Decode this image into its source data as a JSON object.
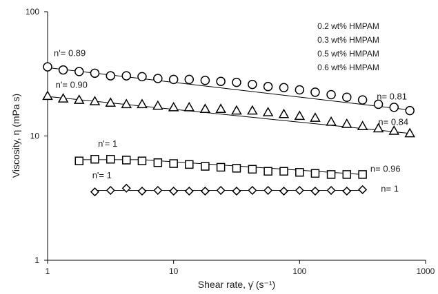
{
  "chart_data": {
    "type": "scatter",
    "x_scale": "log",
    "y_scale": "log",
    "xlim": [
      1,
      1000
    ],
    "ylim": [
      1,
      100
    ],
    "grid": false,
    "xlabel": "Shear rate, γ̇ (s⁻¹)",
    "ylabel": "Viscosity, η (mPa s)",
    "x_ticks": [
      {
        "v": 1,
        "label": "1"
      },
      {
        "v": 10,
        "label": "10"
      },
      {
        "v": 100,
        "label": "100"
      },
      {
        "v": 1000,
        "label": "1000"
      }
    ],
    "y_ticks": [
      {
        "v": 1,
        "label": "1"
      },
      {
        "v": 10,
        "label": "10"
      },
      {
        "v": 100,
        "label": "100"
      }
    ],
    "legend_entries": [
      "0.2 wt% HMPAM",
      "0.3 wt% HMPAM",
      "0.5 wt% HMPAM",
      "0.6 wt% HMPAM"
    ],
    "series": [
      {
        "marker": "circle",
        "x": [
          1,
          1.33,
          1.78,
          2.37,
          3.16,
          4.22,
          5.62,
          7.5,
          10,
          13.3,
          17.8,
          23.7,
          31.6,
          42.2,
          56.2,
          75,
          100,
          133,
          178,
          237,
          316,
          422,
          562,
          750
        ],
        "y": [
          36,
          34,
          33,
          32,
          30.5,
          30.5,
          30,
          29,
          28.5,
          28.5,
          28,
          27.5,
          27,
          26,
          25,
          24.5,
          23.5,
          22.5,
          21.5,
          20.5,
          19.5,
          18,
          17,
          16
        ],
        "fit_x": [
          1,
          750
        ],
        "fit_y": [
          35.5,
          16.2
        ]
      },
      {
        "marker": "triangle",
        "x": [
          1,
          1.33,
          1.78,
          2.37,
          3.16,
          4.22,
          5.62,
          7.5,
          10,
          13.3,
          17.8,
          23.7,
          31.6,
          42.2,
          56.2,
          75,
          100,
          133,
          178,
          237,
          316,
          422,
          562,
          750
        ],
        "y": [
          21,
          20,
          19.5,
          19,
          18.5,
          18,
          18,
          17.5,
          17,
          17,
          16.5,
          16.5,
          16,
          16,
          15.5,
          15,
          14.5,
          14,
          13,
          12.5,
          12,
          11.5,
          11,
          10.5
        ],
        "fit_x": [
          1,
          750
        ],
        "fit_y": [
          20.8,
          10.5
        ]
      },
      {
        "marker": "square",
        "x": [
          1.78,
          2.37,
          3.16,
          4.22,
          5.62,
          7.5,
          10,
          13.3,
          17.8,
          23.7,
          31.6,
          42.2,
          56.2,
          75,
          100,
          133,
          178,
          237,
          316
        ],
        "y": [
          6.3,
          6.5,
          6.5,
          6.4,
          6.3,
          6.1,
          6.0,
          5.9,
          5.7,
          5.6,
          5.5,
          5.4,
          5.2,
          5.2,
          5.1,
          5.0,
          4.9,
          4.9,
          4.9
        ],
        "fit_x": [
          1.78,
          5.62,
          316
        ],
        "fit_y": [
          6.45,
          6.45,
          4.9
        ]
      },
      {
        "marker": "diamond",
        "x": [
          2.37,
          3.16,
          4.22,
          5.62,
          7.5,
          10,
          13.3,
          17.8,
          23.7,
          31.6,
          42.2,
          56.2,
          75,
          100,
          133,
          178,
          237,
          316
        ],
        "y": [
          3.55,
          3.65,
          3.8,
          3.6,
          3.65,
          3.6,
          3.6,
          3.6,
          3.65,
          3.6,
          3.65,
          3.65,
          3.6,
          3.65,
          3.6,
          3.65,
          3.6,
          3.7
        ],
        "fit_x": [
          2.37,
          316
        ],
        "fit_y": [
          3.65,
          3.65
        ]
      }
    ],
    "annotations": [
      {
        "text": "n'= 0.89",
        "x": 1.5,
        "y": 44
      },
      {
        "text": "n'= 0.90",
        "x": 1.55,
        "y": 24.5
      },
      {
        "text": "n'= 1",
        "x": 3.0,
        "y": 8.2
      },
      {
        "text": "n'= 1",
        "x": 2.7,
        "y": 4.55
      },
      {
        "text": "n= 0.81",
        "x": 540,
        "y": 19.6
      },
      {
        "text": "n= 0.84",
        "x": 555,
        "y": 12.3
      },
      {
        "text": "n= 0.96",
        "x": 480,
        "y": 5.15
      },
      {
        "text": "n= 1",
        "x": 520,
        "y": 3.55
      }
    ]
  }
}
